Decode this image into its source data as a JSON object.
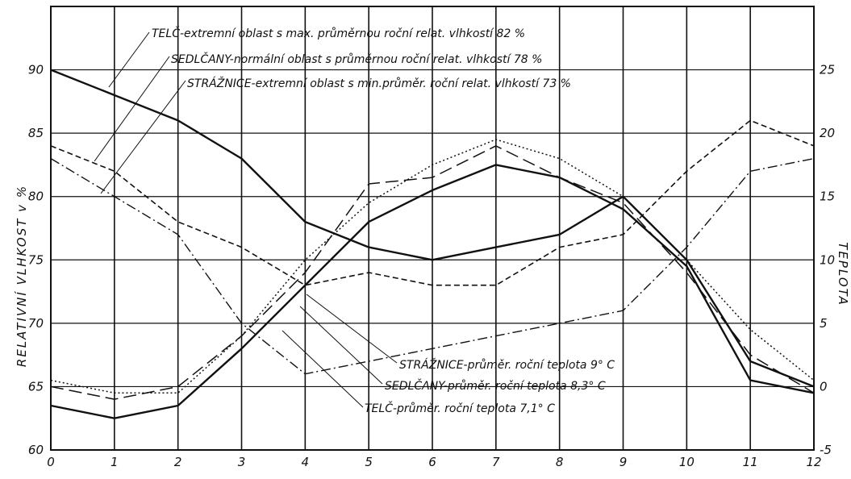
{
  "chart_data": {
    "type": "line",
    "title": "",
    "x": [
      0,
      1,
      2,
      3,
      4,
      5,
      6,
      7,
      8,
      9,
      10,
      11,
      12
    ],
    "xlim": [
      0,
      12
    ],
    "ylabel": "RELATIVNÍ VLHKOST v %",
    "ylim": [
      60,
      95
    ],
    "y_ticks": [
      60,
      65,
      70,
      75,
      80,
      85,
      90
    ],
    "y2label": "TEPLOTA",
    "y2lim": [
      -5,
      30
    ],
    "y2_ticks": [
      -5,
      0,
      5,
      10,
      15,
      20,
      25
    ],
    "grid": true,
    "annotations": [
      "TELČ-extremní oblast s max. průměrnou roční relat. vlhkostí 82 %",
      "SEDLČANY-normální oblast s průměrnou roční relat. vlhkostí 78 %",
      "STRÁŽNICE-extremní oblast s min.průměr. roční relat. vlhkostí 73 %",
      "STRÁŽNICE-průměr. roční teplota 9° C",
      "SEDLČANY-průměr. roční teplota 8,3° C",
      "TELČ-průměr. roční teplota 7,1° C"
    ],
    "series": [
      {
        "axis": "humidity",
        "style": "solid",
        "color": "#111111",
        "values": [
          90,
          88,
          86,
          83,
          78,
          76,
          75,
          76,
          77,
          80,
          75,
          67,
          65
        ]
      },
      {
        "axis": "humidity",
        "style": "dashed",
        "color": "#111111",
        "values": [
          84,
          82,
          78,
          76,
          73,
          74,
          73,
          73,
          76,
          77,
          82,
          86,
          84
        ]
      },
      {
        "axis": "humidity",
        "style": "dashdot",
        "color": "#111111",
        "values": [
          83,
          80,
          77,
          70,
          66,
          67,
          68,
          69,
          70,
          71,
          76,
          82,
          83
        ]
      },
      {
        "axis": "temperature",
        "style": "solid",
        "color": "#111111",
        "values": [
          -1.5,
          -2.5,
          -1.5,
          3,
          8,
          13,
          15.5,
          17.5,
          16.5,
          14,
          9.5,
          0.5,
          -0.5
        ]
      },
      {
        "axis": "temperature",
        "style": "longdash",
        "color": "#111111",
        "values": [
          0,
          -1,
          0,
          4,
          9,
          16,
          16.5,
          19,
          16.5,
          14.5,
          9,
          2.5,
          -0.5
        ]
      },
      {
        "axis": "temperature",
        "style": "dotted",
        "color": "#111111",
        "values": [
          0.5,
          -0.5,
          -0.5,
          4,
          10,
          14.5,
          17.5,
          19.5,
          18,
          15,
          10,
          4.5,
          0.5
        ]
      }
    ]
  }
}
